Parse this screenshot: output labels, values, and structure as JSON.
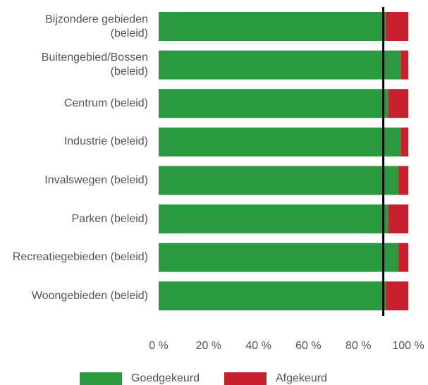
{
  "chart_data": {
    "type": "stacked_barh",
    "categories": [
      "Bijzondere gebieden (beleid)",
      "Buitengebied/Bossen (beleid)",
      "Centrum (beleid)",
      "Industrie (beleid)",
      "Invalswegen (beleid)",
      "Parken (beleid)",
      "Recreatiegebieden (beleid)",
      "Woongebieden (beleid)"
    ],
    "series": [
      {
        "name": "Goedgekeurd",
        "color": "#2a9a3f",
        "values": [
          91,
          97,
          92,
          97,
          96,
          92,
          96,
          91
        ]
      },
      {
        "name": "Afgekeurd",
        "color": "#c8202f",
        "values": [
          9,
          3,
          8,
          3,
          4,
          8,
          4,
          9
        ]
      }
    ],
    "xlim": [
      0,
      100
    ],
    "xticks": [
      {
        "value": 0,
        "label": "0 %"
      },
      {
        "value": 20,
        "label": "20 %"
      },
      {
        "value": 40,
        "label": "40 %"
      },
      {
        "value": 60,
        "label": "60 %"
      },
      {
        "value": 80,
        "label": "80 %"
      },
      {
        "value": 100,
        "label": "100 %"
      }
    ],
    "reference_line": 90,
    "legend": "bottom"
  }
}
